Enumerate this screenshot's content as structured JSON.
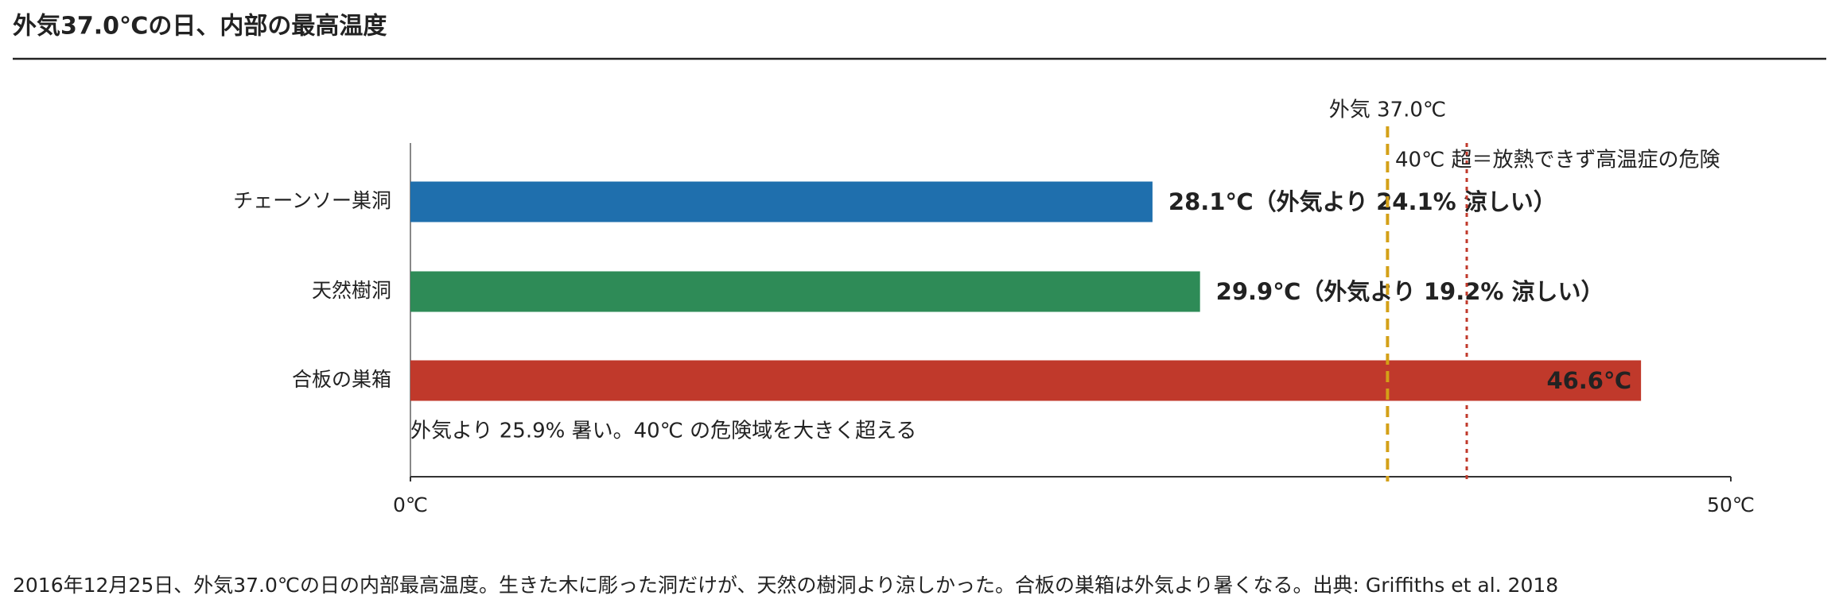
{
  "chart_data": {
    "type": "barh",
    "title": "外気37.0℃の日、内部の最高温度",
    "categories": [
      "チェーンソー巣洞",
      "天然樹洞",
      "合板の巣箱"
    ],
    "values": [
      28.1,
      29.9,
      46.6
    ],
    "value_labels": [
      "28.1℃（外気より 24.1% 涼しい）",
      "29.9℃（外気より 19.2% 涼しい）",
      "46.6℃"
    ],
    "value_label_inside": [
      false,
      false,
      true
    ],
    "colors": [
      "#1f6fad",
      "#2e8b57",
      "#c0392b"
    ],
    "xlim": [
      0,
      50
    ],
    "xticks": [
      {
        "value": 0,
        "label": "0℃"
      },
      {
        "value": 50,
        "label": "50℃"
      }
    ],
    "reference_lines": [
      {
        "value": 37.0,
        "label": "外気 37.0℃",
        "color": "#d4a017",
        "style": "dashed"
      },
      {
        "value": 40,
        "label": "40℃ 超＝放熱できず高温症の危険",
        "color": "#c0392b",
        "style": "dotted"
      }
    ],
    "annotation": {
      "text": "外気より 25.9% 暑い。40℃ の危険域を大きく超える",
      "color": "#c0392b"
    },
    "caption": "2016年12月25日、外気37.0℃の日の内部最高温度。生きた木に彫った洞だけが、天然の樹洞より涼しかった。合板の巣箱は外気より暑くなる。出典: Griffiths et al. 2018"
  }
}
